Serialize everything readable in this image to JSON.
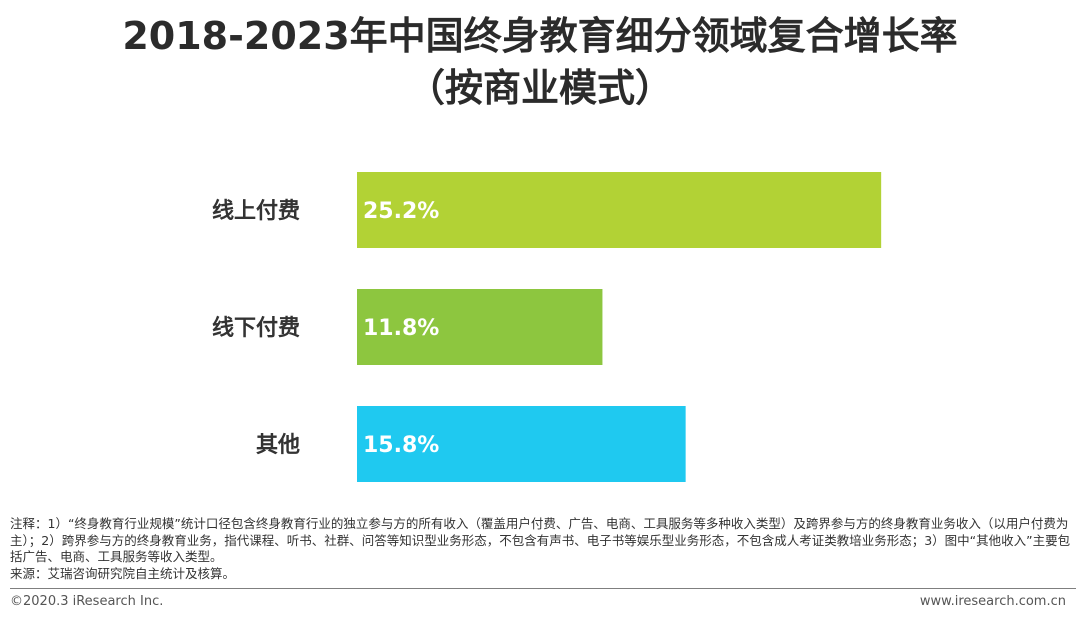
{
  "title": {
    "line1": "2018-2023年中国终身教育细分领域复合增长率",
    "line2": "（按商业模式）"
  },
  "chart_data": {
    "type": "bar",
    "orientation": "horizontal",
    "categories": [
      "线上付费",
      "线下付费",
      "其他"
    ],
    "values": [
      25.2,
      11.8,
      15.8
    ],
    "value_labels": [
      "25.2%",
      "11.8%",
      "15.8%"
    ],
    "colors": [
      "#b2d235",
      "#8dc63f",
      "#1fc9f0"
    ],
    "xlim": [
      0,
      30
    ],
    "grid": false,
    "legend": "none"
  },
  "notes": {
    "note": "注释：1）“终身教育行业规模”统计口径包含终身教育行业的独立参与方的所有收入（覆盖用户付费、广告、电商、工具服务等多种收入类型）及跨界参与方的终身教育业务收入（以用户付费为主）；2）跨界参与方的终身教育业务，指代课程、听书、社群、问答等知识型业务形态，不包含有声书、电子书等娱乐型业务形态，不包含成人考证类教培业务形态；3）图中“其他收入”主要包括广告、电商、工具服务等收入类型。",
    "source": "来源：艾瑞咨询研究院自主统计及核算。"
  },
  "footer": {
    "copyright": "©2020.3 iResearch Inc.",
    "website": "www.iresearch.com.cn"
  }
}
